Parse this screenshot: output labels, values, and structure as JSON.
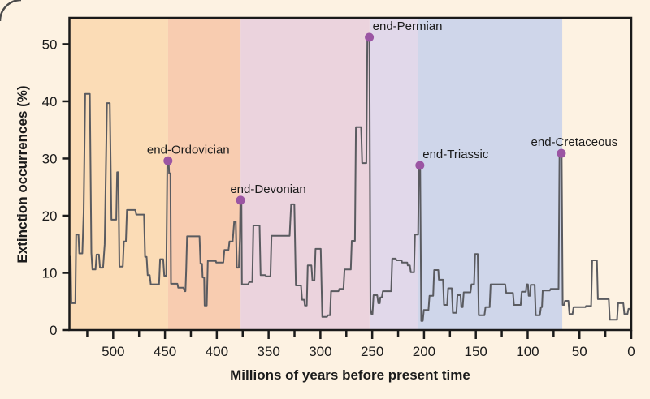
{
  "figure": {
    "y_axis_title": "Extinction occurrences (%)",
    "x_axis_title": "Millions of years before present time"
  },
  "colors": {
    "background": "#fdf2e2",
    "axis": "#1a1a1a",
    "text": "#1b1b1b",
    "line": "#5a5b60",
    "event_marker": "#9b55a3",
    "corner_border": "#4a4a4a"
  },
  "chart_data": {
    "type": "line",
    "title": "",
    "xlabel": "Millions of years before present time",
    "ylabel": "Extinction occurrences (%)",
    "x_unit": "millions of years before present (axis reversed)",
    "xlim": [
      542.2,
      0
    ],
    "ylim": [
      0,
      54.6
    ],
    "x_ticks_major": [
      500,
      450,
      400,
      350,
      300,
      250,
      200,
      150,
      100,
      50,
      0
    ],
    "x_ticks_minor": [
      525,
      475,
      425,
      375,
      325,
      275,
      225,
      175,
      125,
      75,
      25
    ],
    "y_ticks": [
      0,
      10,
      20,
      30,
      40,
      50
    ],
    "grid": false,
    "legend": null,
    "background_bands": [
      {
        "name": "cambrian-ordovician",
        "from_mya": 542.2,
        "to_mya": 447.0,
        "color": "#fbdcb6"
      },
      {
        "name": "silurian-devonian",
        "from_mya": 447.0,
        "to_mya": 377.0,
        "color": "#f8ccb0"
      },
      {
        "name": "carboniferous-permian",
        "from_mya": 377.0,
        "to_mya": 252.6,
        "color": "#ebd3dd"
      },
      {
        "name": "triassic",
        "from_mya": 252.6,
        "to_mya": 206.0,
        "color": "#e1d8ea"
      },
      {
        "name": "jurassic-cretaceous",
        "from_mya": 206.0,
        "to_mya": 66.5,
        "color": "#cfd6ea"
      },
      {
        "name": "cenozoic",
        "from_mya": 66.5,
        "to_mya": 0,
        "color": "#fdf2e2"
      }
    ],
    "events": [
      {
        "label": "end-Ordovician",
        "mya": 447.1,
        "pct": 29.6,
        "label_dx": 25
      },
      {
        "label": "end-Devonian",
        "mya": 377.1,
        "pct": 22.7,
        "label_dx": 34
      },
      {
        "label": "end-Permian",
        "mya": 252.8,
        "pct": 51.2,
        "label_dx": 47
      },
      {
        "label": "end-Triassic",
        "mya": 204.0,
        "pct": 28.8,
        "label_dx": 44
      },
      {
        "label": "end-Cretaceous",
        "mya": 67.5,
        "pct": 30.9,
        "label_dx": 16
      }
    ],
    "series": [
      [
        542.2,
        13.0
      ],
      [
        541.0,
        12.6
      ],
      [
        540.3,
        4.7
      ],
      [
        536.5,
        4.7
      ],
      [
        535.7,
        16.7
      ],
      [
        533.5,
        16.7
      ],
      [
        532.7,
        13.4
      ],
      [
        529.7,
        13.4
      ],
      [
        528.5,
        20.5
      ],
      [
        527.0,
        41.3
      ],
      [
        522.5,
        41.3
      ],
      [
        521.0,
        13.5
      ],
      [
        520.0,
        10.6
      ],
      [
        517.0,
        10.6
      ],
      [
        516.0,
        13.2
      ],
      [
        513.7,
        13.2
      ],
      [
        512.7,
        10.9
      ],
      [
        509.7,
        10.9
      ],
      [
        508.2,
        15.0
      ],
      [
        506.0,
        39.7
      ],
      [
        503.2,
        39.7
      ],
      [
        501.7,
        19.3
      ],
      [
        497.0,
        19.3
      ],
      [
        496.2,
        27.6
      ],
      [
        495.0,
        27.6
      ],
      [
        494.0,
        11.1
      ],
      [
        490.7,
        11.1
      ],
      [
        489.7,
        15.5
      ],
      [
        487.7,
        15.5
      ],
      [
        486.7,
        21.0
      ],
      [
        478.7,
        21.0
      ],
      [
        477.7,
        20.2
      ],
      [
        470.2,
        20.2
      ],
      [
        469.2,
        12.8
      ],
      [
        467.7,
        12.8
      ],
      [
        466.7,
        9.6
      ],
      [
        464.7,
        9.6
      ],
      [
        463.7,
        8.0
      ],
      [
        455.7,
        8.0
      ],
      [
        454.7,
        12.4
      ],
      [
        451.7,
        12.4
      ],
      [
        450.7,
        9.5
      ],
      [
        448.7,
        9.5
      ],
      [
        447.7,
        29.6
      ],
      [
        446.5,
        29.6
      ],
      [
        446.0,
        27.4
      ],
      [
        444.7,
        27.4
      ],
      [
        444.2,
        8.1
      ],
      [
        438.0,
        8.1
      ],
      [
        437.2,
        7.4
      ],
      [
        432.0,
        7.4
      ],
      [
        431.0,
        6.8
      ],
      [
        430.2,
        6.8
      ],
      [
        429.5,
        10.5
      ],
      [
        428.7,
        16.4
      ],
      [
        416.7,
        16.4
      ],
      [
        415.7,
        11.6
      ],
      [
        414.2,
        11.6
      ],
      [
        413.7,
        9.2
      ],
      [
        412.2,
        9.2
      ],
      [
        411.7,
        4.3
      ],
      [
        409.7,
        4.3
      ],
      [
        408.7,
        12.1
      ],
      [
        401.0,
        12.1
      ],
      [
        400.5,
        11.8
      ],
      [
        393.7,
        11.8
      ],
      [
        392.7,
        14.0
      ],
      [
        388.7,
        14.0
      ],
      [
        387.7,
        15.5
      ],
      [
        384.7,
        15.5
      ],
      [
        383.2,
        19.0
      ],
      [
        381.7,
        19.0
      ],
      [
        380.7,
        10.9
      ],
      [
        378.7,
        10.9
      ],
      [
        377.7,
        16.0
      ],
      [
        377.2,
        22.7
      ],
      [
        376.2,
        22.7
      ],
      [
        375.7,
        8.0
      ],
      [
        369.7,
        8.0
      ],
      [
        368.7,
        8.4
      ],
      [
        365.7,
        8.4
      ],
      [
        364.7,
        18.3
      ],
      [
        358.7,
        18.3
      ],
      [
        357.7,
        9.6
      ],
      [
        353.2,
        9.6
      ],
      [
        352.2,
        9.4
      ],
      [
        348.2,
        9.4
      ],
      [
        347.2,
        16.5
      ],
      [
        329.7,
        16.5
      ],
      [
        328.2,
        22.0
      ],
      [
        325.2,
        22.0
      ],
      [
        323.7,
        7.8
      ],
      [
        318.7,
        7.8
      ],
      [
        317.7,
        5.3
      ],
      [
        315.7,
        5.3
      ],
      [
        315.0,
        4.3
      ],
      [
        313.2,
        4.3
      ],
      [
        312.2,
        11.3
      ],
      [
        308.7,
        11.3
      ],
      [
        307.7,
        8.7
      ],
      [
        305.7,
        8.7
      ],
      [
        304.7,
        14.2
      ],
      [
        299.7,
        14.2
      ],
      [
        298.2,
        2.3
      ],
      [
        293.7,
        2.3
      ],
      [
        292.7,
        2.6
      ],
      [
        290.7,
        2.6
      ],
      [
        289.7,
        6.8
      ],
      [
        282.7,
        6.8
      ],
      [
        281.7,
        7.2
      ],
      [
        277.7,
        7.2
      ],
      [
        276.7,
        10.6
      ],
      [
        270.7,
        10.6
      ],
      [
        269.7,
        15.6
      ],
      [
        266.7,
        15.6
      ],
      [
        265.7,
        35.5
      ],
      [
        260.7,
        35.5
      ],
      [
        259.7,
        29.2
      ],
      [
        255.7,
        29.2
      ],
      [
        254.7,
        51.2
      ],
      [
        252.7,
        51.2
      ],
      [
        251.7,
        3.7
      ],
      [
        250.7,
        2.8
      ],
      [
        249.7,
        2.8
      ],
      [
        248.7,
        6.1
      ],
      [
        245.2,
        6.1
      ],
      [
        244.2,
        4.7
      ],
      [
        242.7,
        4.7
      ],
      [
        242.2,
        5.7
      ],
      [
        240.7,
        5.7
      ],
      [
        239.7,
        6.8
      ],
      [
        231.7,
        6.8
      ],
      [
        230.7,
        12.5
      ],
      [
        227.2,
        12.5
      ],
      [
        226.7,
        12.2
      ],
      [
        221.7,
        12.2
      ],
      [
        221.2,
        11.8
      ],
      [
        216.2,
        11.8
      ],
      [
        215.7,
        11.3
      ],
      [
        213.7,
        11.3
      ],
      [
        212.7,
        10.1
      ],
      [
        209.7,
        10.1
      ],
      [
        208.7,
        16.7
      ],
      [
        205.7,
        16.7
      ],
      [
        205.0,
        28.8
      ],
      [
        203.7,
        28.8
      ],
      [
        202.7,
        1.6
      ],
      [
        201.2,
        1.6
      ],
      [
        200.2,
        3.5
      ],
      [
        195.7,
        3.5
      ],
      [
        194.7,
        6.0
      ],
      [
        191.2,
        6.0
      ],
      [
        190.2,
        10.5
      ],
      [
        186.2,
        10.5
      ],
      [
        185.7,
        8.8
      ],
      [
        181.7,
        8.8
      ],
      [
        180.7,
        4.4
      ],
      [
        177.7,
        4.4
      ],
      [
        176.7,
        7.3
      ],
      [
        173.2,
        7.3
      ],
      [
        172.2,
        3.0
      ],
      [
        168.7,
        3.0
      ],
      [
        167.7,
        6.1
      ],
      [
        164.7,
        6.1
      ],
      [
        164.0,
        4.0
      ],
      [
        162.7,
        4.0
      ],
      [
        161.7,
        6.6
      ],
      [
        155.2,
        6.6
      ],
      [
        154.2,
        8.0
      ],
      [
        151.7,
        8.0
      ],
      [
        150.7,
        13.3
      ],
      [
        148.2,
        13.3
      ],
      [
        147.2,
        2.6
      ],
      [
        141.7,
        2.6
      ],
      [
        140.7,
        4.0
      ],
      [
        136.7,
        4.0
      ],
      [
        135.7,
        8.0
      ],
      [
        121.7,
        8.0
      ],
      [
        120.7,
        6.5
      ],
      [
        114.2,
        6.5
      ],
      [
        113.2,
        4.4
      ],
      [
        106.7,
        4.4
      ],
      [
        105.7,
        6.7
      ],
      [
        101.7,
        6.7
      ],
      [
        101.0,
        8.0
      ],
      [
        99.7,
        8.0
      ],
      [
        99.0,
        6.0
      ],
      [
        97.7,
        6.0
      ],
      [
        97.0,
        7.9
      ],
      [
        93.2,
        7.9
      ],
      [
        92.2,
        2.6
      ],
      [
        88.2,
        2.6
      ],
      [
        87.2,
        4.0
      ],
      [
        86.2,
        4.0
      ],
      [
        85.5,
        6.9
      ],
      [
        78.7,
        6.9
      ],
      [
        77.7,
        7.2
      ],
      [
        70.2,
        7.2
      ],
      [
        69.2,
        30.9
      ],
      [
        67.2,
        30.9
      ],
      [
        66.2,
        4.4
      ],
      [
        64.7,
        4.4
      ],
      [
        64.0,
        5.1
      ],
      [
        60.7,
        5.1
      ],
      [
        59.7,
        2.8
      ],
      [
        56.7,
        2.8
      ],
      [
        55.7,
        4.0
      ],
      [
        44.2,
        4.0
      ],
      [
        43.7,
        4.2
      ],
      [
        38.7,
        4.2
      ],
      [
        37.7,
        12.2
      ],
      [
        33.2,
        12.2
      ],
      [
        32.2,
        5.4
      ],
      [
        21.7,
        5.4
      ],
      [
        20.7,
        1.8
      ],
      [
        13.7,
        1.8
      ],
      [
        12.7,
        4.7
      ],
      [
        7.7,
        4.7
      ],
      [
        6.7,
        2.8
      ],
      [
        3.7,
        2.8
      ],
      [
        2.7,
        3.7
      ],
      [
        0,
        3.7
      ]
    ]
  }
}
